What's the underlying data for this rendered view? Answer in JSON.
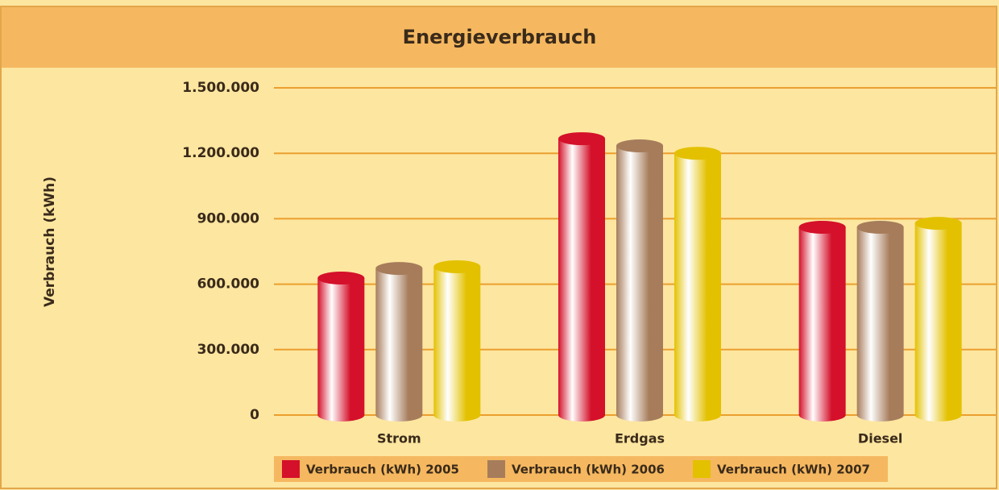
{
  "chart_data": {
    "type": "bar",
    "title": "Energieverbrauch",
    "ylabel": "Verbrauch (kWh)",
    "categories": [
      "Strom",
      "Erdgas",
      "Diesel"
    ],
    "series": [
      {
        "name": "Verbrauch (kWh) 2005",
        "color": "#d4102a",
        "values": [
          628000,
          1267000,
          861000
        ]
      },
      {
        "name": "Verbrauch (kWh) 2006",
        "color": "#a67c5b",
        "values": [
          672000,
          1234000,
          861000
        ]
      },
      {
        "name": "Verbrauch (kWh) 2007",
        "color": "#e3c100",
        "values": [
          680000,
          1200000,
          879000
        ]
      }
    ],
    "ylim": [
      0,
      1500000
    ],
    "yticks": [
      0,
      {
        "value": 300000,
        "label": "300.000"
      },
      {
        "value": 600000,
        "label": "600.000"
      },
      {
        "value": 900000,
        "label": "900.000"
      },
      {
        "value": 1200000,
        "label": "1.200.000"
      },
      {
        "value": 1500000,
        "label": "1.500.000"
      }
    ],
    "grid": true,
    "legend": "bottom"
  }
}
